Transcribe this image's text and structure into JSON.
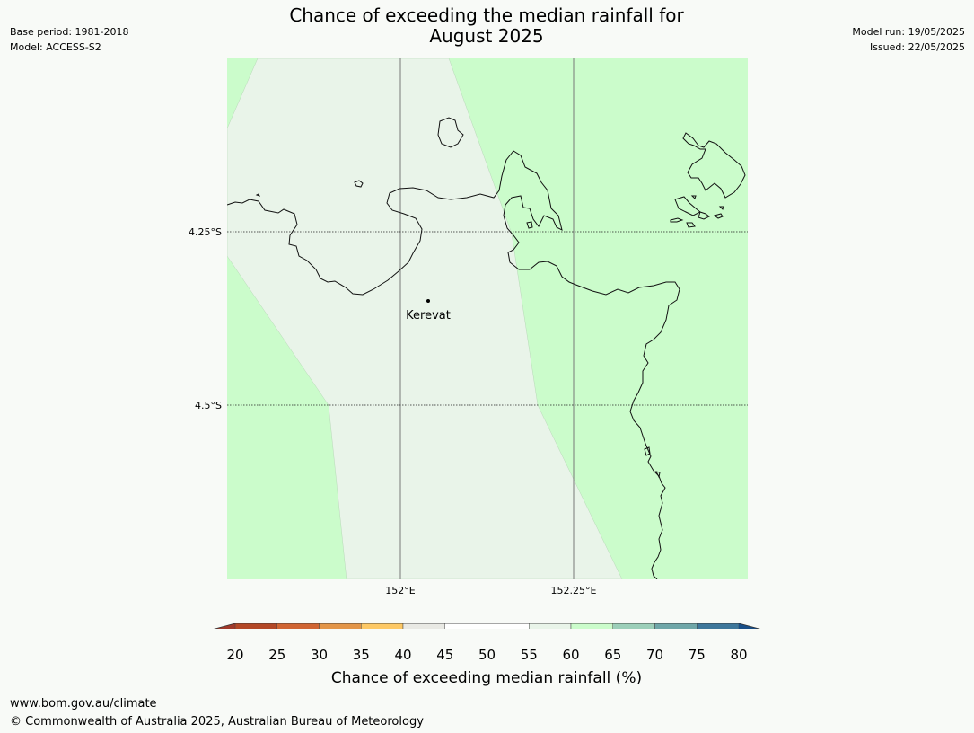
{
  "title": {
    "line1": "Chance of exceeding the median rainfall for",
    "line2": "August 2025"
  },
  "meta_left": {
    "base_period": "Base period: 1981-2018",
    "model": "Model: ACCESS-S2"
  },
  "meta_right": {
    "model_run": "Model run: 19/05/2025",
    "issued": "Issued: 22/05/2025"
  },
  "map": {
    "lat_labels": [
      "4.25°S",
      "4.5°S"
    ],
    "lon_labels": [
      "152°E",
      "152.25°E"
    ],
    "place": {
      "name": "Kerevat",
      "lon": 152.04,
      "lat": -4.35
    },
    "region_colors": {
      "45-55": "#e9f4e9",
      "60-65": "#cbfccb"
    }
  },
  "colorbar": {
    "ticks": [
      "20",
      "25",
      "30",
      "35",
      "40",
      "45",
      "50",
      "55",
      "60",
      "65",
      "70",
      "75",
      "80"
    ],
    "colors": [
      "#a0392a",
      "#b34726",
      "#d06432",
      "#e39548",
      "#fdc865",
      "#e9e9e4",
      "#ffffff",
      "#ffffff",
      "#e9f4e9",
      "#cbfccb",
      "#9ccfb9",
      "#6fa6a8",
      "#3e779b",
      "#184e87"
    ],
    "label": "Chance of exceeding median rainfall (%)"
  },
  "footer": {
    "url": "www.bom.gov.au/climate",
    "copyright": "© Commonwealth of Australia 2025, Australian Bureau of Meteorology"
  }
}
